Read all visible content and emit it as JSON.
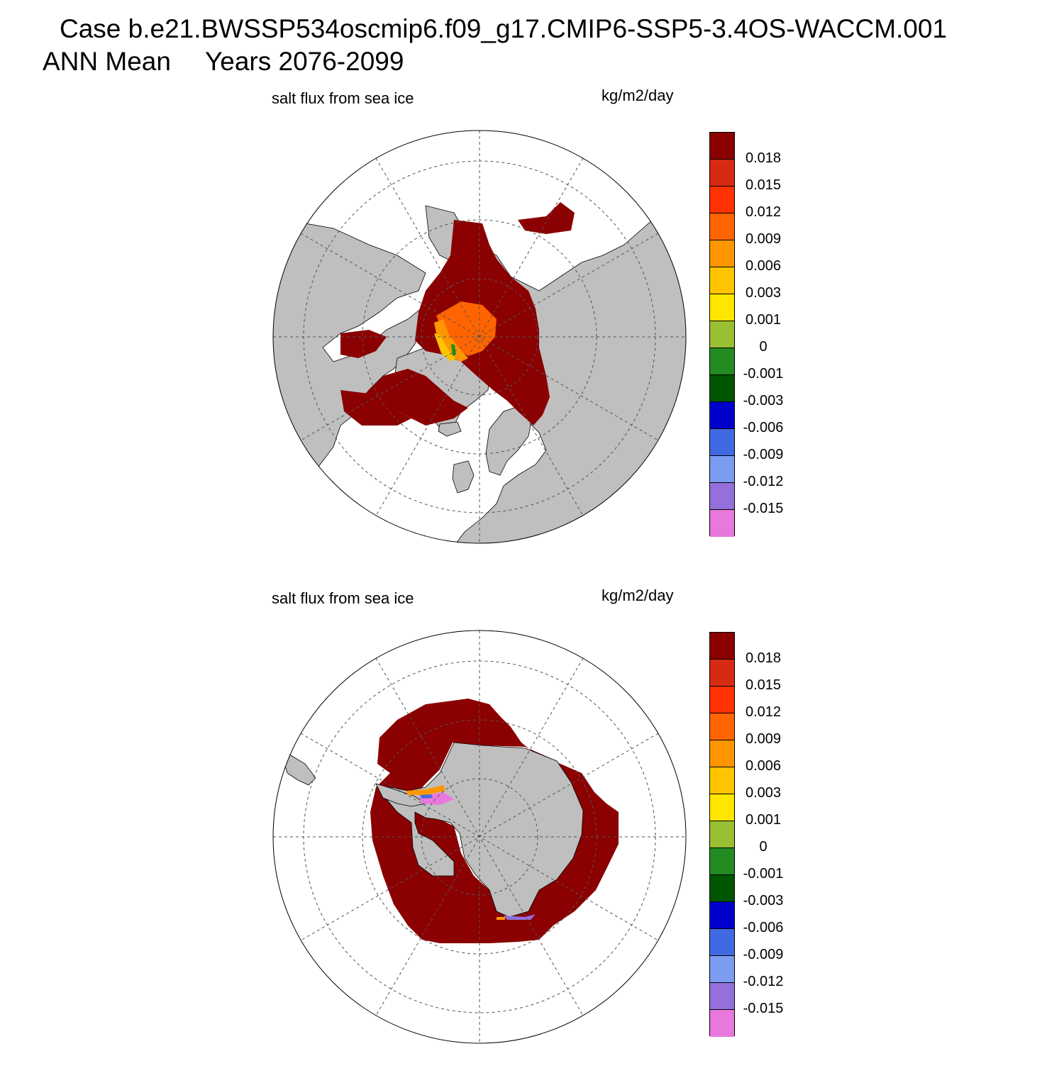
{
  "header": {
    "case_line": "Case b.e21.BWSSP534oscmip6.f09_g17.CMIP6-SSP5-3.4OS-WACCM.001",
    "period_label": "ANN Mean",
    "years_label": "Years 2076-2099"
  },
  "panels": [
    {
      "id": "north",
      "hemisphere": "north",
      "title": "salt flux from sea ice",
      "units": "kg/m2/day"
    },
    {
      "id": "south",
      "hemisphere": "south",
      "title": "salt flux from sea ice",
      "units": "kg/m2/day"
    }
  ],
  "colorbar": {
    "colors": [
      "#8b0000",
      "#d62b12",
      "#ff3200",
      "#ff6400",
      "#ff9600",
      "#ffc300",
      "#ffe600",
      "#99bf33",
      "#228b22",
      "#005500",
      "#0000cd",
      "#4169e1",
      "#7b9cf0",
      "#9370db",
      "#e878dc"
    ],
    "labels": [
      "0.018",
      "0.015",
      "0.012",
      "0.009",
      "0.006",
      "0.003",
      "0.001",
      "0",
      "-0.001",
      "-0.003",
      "-0.006",
      "-0.009",
      "-0.012",
      "-0.015"
    ]
  },
  "style": {
    "land_color": "#bfbfbf",
    "ocean_color": "#ffffff",
    "sea_ice_high_color": "#8b0000"
  }
}
